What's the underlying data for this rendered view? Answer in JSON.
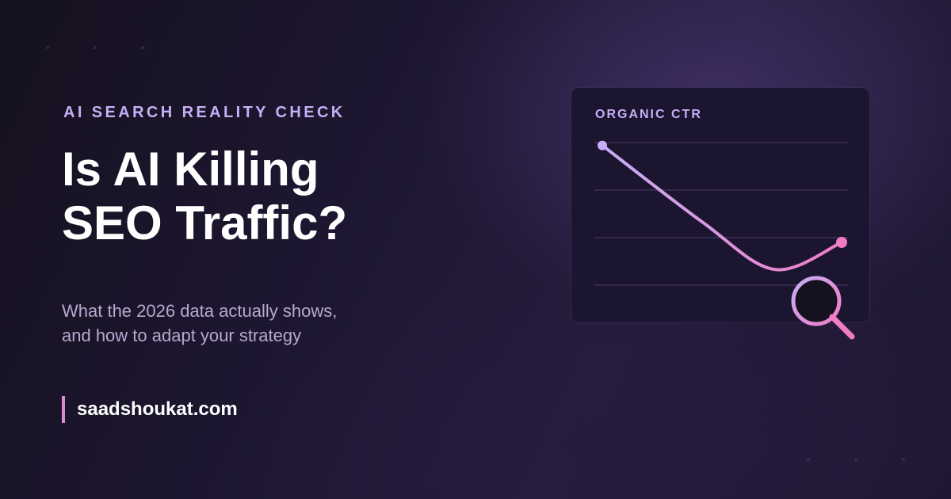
{
  "hero": {
    "eyebrow": "AI SEARCH REALITY CHECK",
    "headline_line1": "Is AI Killing",
    "headline_line2": "SEO Traffic?",
    "subtitle_line1": "What the 2026 data actually shows,",
    "subtitle_line2": "and how to adapt your strategy"
  },
  "footer": {
    "site": "saadshoukat.com"
  },
  "card": {
    "title": "ORGANIC CTR"
  },
  "icons": {
    "magnifier": "magnifying-glass-icon"
  },
  "colors": {
    "accent_lavender": "#c7aef5",
    "accent_pink": "#f07cc4",
    "subtitle": "#b7a9d0",
    "card_bg": "#1b1530"
  },
  "chart_data": {
    "type": "line",
    "title": "ORGANIC CTR",
    "xlabel": "",
    "ylabel": "",
    "grid": true,
    "gridlines": 4,
    "xlim": [
      0,
      10
    ],
    "ylim": [
      0,
      10
    ],
    "series": [
      {
        "x": [
          0,
          4.2,
          7.2,
          10
        ],
        "y": [
          9.8,
          4.4,
          1.1,
          3.0
        ],
        "start_point": true,
        "end_point": true
      }
    ],
    "gradient": [
      "#c7aef5",
      "#f07cc4"
    ]
  }
}
